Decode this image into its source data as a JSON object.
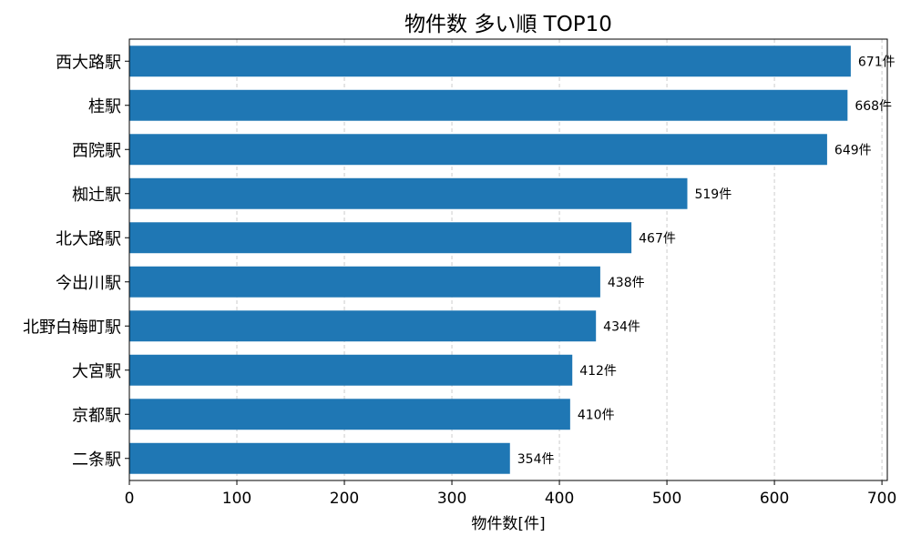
{
  "chart_data": {
    "type": "bar",
    "orientation": "horizontal",
    "title": "物件数 多い順 TOP10",
    "xlabel": "物件数[件]",
    "ylabel": "",
    "categories": [
      "西大路駅",
      "桂駅",
      "西院駅",
      "椥辻駅",
      "北大路駅",
      "今出川駅",
      "北野白梅町駅",
      "大宮駅",
      "京都駅",
      "二条駅"
    ],
    "values": [
      671,
      668,
      649,
      519,
      467,
      438,
      434,
      412,
      410,
      354
    ],
    "value_suffix": "件",
    "xlim": [
      0,
      705
    ],
    "xticks": [
      0,
      100,
      200,
      300,
      400,
      500,
      600,
      700
    ],
    "grid": "x-dashed",
    "bar_color": "#1f77b4"
  }
}
